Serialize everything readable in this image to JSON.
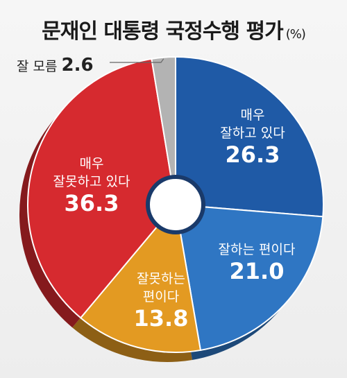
{
  "title": "문재인 대통령 국정수행 평가",
  "unit": "(%)",
  "chart_data": {
    "type": "pie",
    "title": "문재인 대통령 국정수행 평가",
    "unit": "(%)",
    "series": [
      {
        "label_lines": [
          "매우",
          "잘하고 있다"
        ],
        "value": 26.3,
        "color": "#1f5aa6"
      },
      {
        "label_lines": [
          "잘하는 편이다"
        ],
        "value": 21.0,
        "color": "#2f76c3"
      },
      {
        "label_lines": [
          "잘못하는",
          "편이다"
        ],
        "value": 13.8,
        "color": "#e39a22"
      },
      {
        "label_lines": [
          "매우",
          "잘못하고 있다"
        ],
        "value": 36.3,
        "color": "#d62a2f"
      },
      {
        "label_lines": [
          "잘 모름"
        ],
        "value": 2.6,
        "color": "#b3b3b3"
      }
    ]
  }
}
